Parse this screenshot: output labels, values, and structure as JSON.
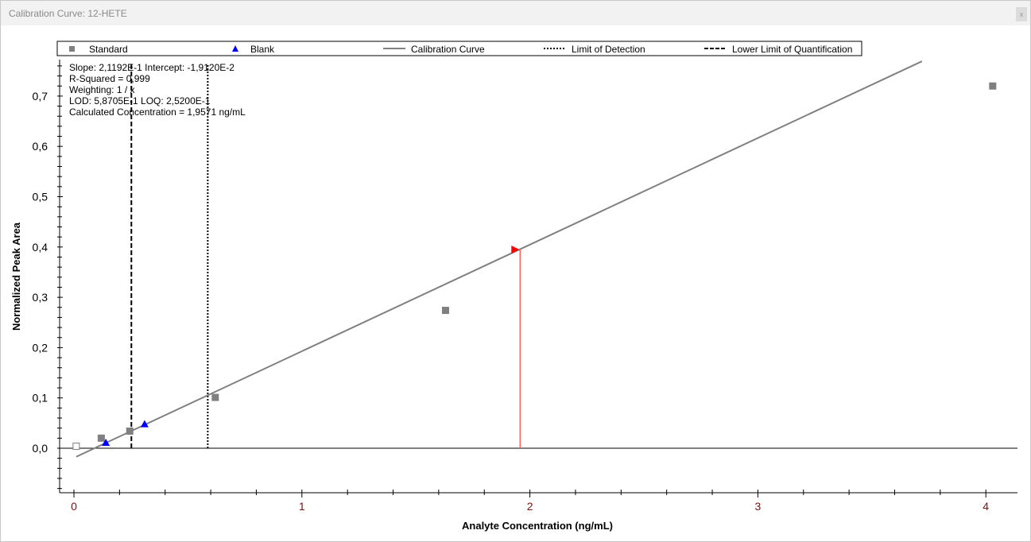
{
  "window": {
    "title": "Calibration Curve: 12-HETE",
    "close_label": "x"
  },
  "chart_data": {
    "type": "scatter",
    "xlabel": "Analyte Concentration (ng/mL)",
    "ylabel": "Normalized Peak Area",
    "xlim": [
      -0.05,
      4.14
    ],
    "ylim": [
      -0.09,
      0.77
    ],
    "x_ticks": [
      0,
      1,
      2,
      3,
      4
    ],
    "x_tick_labels": [
      "0",
      "1",
      "2",
      "3",
      "4"
    ],
    "y_ticks": [
      0,
      0.1,
      0.2,
      0.3,
      0.4,
      0.5,
      0.6,
      0.7
    ],
    "y_tick_labels": [
      "0,0",
      "0,1",
      "0,2",
      "0,3",
      "0,4",
      "0,5",
      "0,6",
      "0,7"
    ],
    "legend": {
      "placement": "top",
      "entries": [
        "Standard",
        "Blank",
        "Calibration Curve",
        "Limit of Detection",
        "Lower Limit of Quantification"
      ]
    },
    "annotations": [
      "Slope: 2,1192E-1 Intercept: -1,9120E-2",
      "R-Squared = 0,999",
      "Weighting: 1 / x",
      "LOD: 5,8705E-1 LOQ: 2,5200E-1",
      "Calculated Concentration = 1,9571 ng/mL"
    ],
    "standard": [
      {
        "x": 0.01,
        "y": 0.004,
        "excluded": true
      },
      {
        "x": 0.12,
        "y": 0.02
      },
      {
        "x": 0.245,
        "y": 0.034
      },
      {
        "x": 0.62,
        "y": 0.101
      },
      {
        "x": 1.63,
        "y": 0.274
      },
      {
        "x": 4.03,
        "y": 0.72
      }
    ],
    "blank": [
      {
        "x": 0.14,
        "y": 0.011
      },
      {
        "x": 0.31,
        "y": 0.048
      }
    ],
    "calibration_curve": {
      "slope": 0.21192,
      "intercept": -0.01912,
      "x_range": [
        0.01,
        3.72
      ]
    },
    "lod": 0.58705,
    "loq": 0.252,
    "calculated": {
      "x": 1.9571,
      "y": 0.395
    },
    "colors": {
      "standard": "#808080",
      "blank": "#0000ff",
      "curve": "#808080",
      "calculated": "#ff0000",
      "calc_line": "#ff6060"
    }
  }
}
